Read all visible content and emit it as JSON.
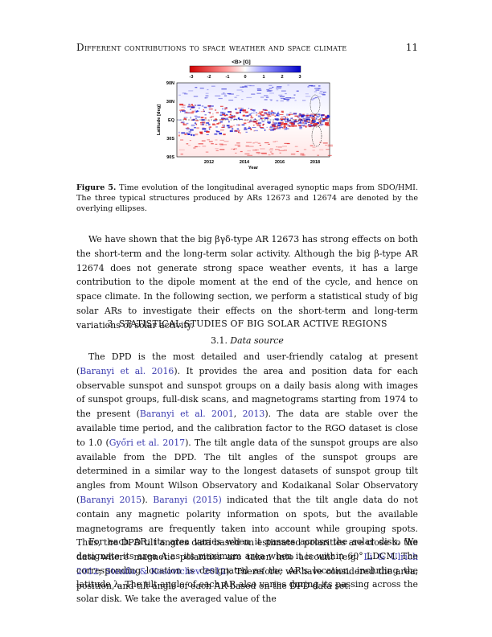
{
  "header": {
    "title": "Different contributions to space weather and space climate",
    "page_number": "11"
  },
  "figure": {
    "colorbar_title": "<B> [G]",
    "colorbar_ticks": [
      "-3",
      "-2",
      "-1",
      "0",
      "1",
      "2",
      "3"
    ],
    "ylabel": "Latitude [deg]",
    "yticks": [
      "90N",
      "30N",
      "EQ",
      "30S",
      "90S"
    ],
    "xticks": [
      "2012",
      "2014",
      "2016",
      "2018"
    ],
    "xlabel": "Year",
    "colors": {
      "negative": "#e02020",
      "positive": "#1a1ad0",
      "zero": "#ffffff"
    }
  },
  "caption": {
    "label": "Figure 5.",
    "text": " Time evolution of the longitudinal averaged synoptic maps from SDO/HMI. The three typical structures produced by ARs 12673 and 12674 are denoted by the overlying ellipses."
  },
  "paragraph1": "We have shown that the big βγδ-type AR 12673 has strong effects on both the short-term and the long-term solar activity. Although the big β-type AR 12674 does not generate strong space weather events, it has a large contribution to the dipole moment at the end of the cycle, and hence on space climate. In the following section, we perform a statistical study of big solar ARs to investigate their effects on the short-term and long-term variations of solar activity.",
  "section_heading": "3. STATISTICAL STUDIES OF BIG SOLAR ACTIVE REGIONS",
  "subsection_number": "3.1.",
  "subsection_title": "Data source",
  "paragraph2": {
    "t1": "The DPD is the most detailed and user-friendly catalog at present (",
    "c1": "Baranyi et al. 2016",
    "t2": "). It provides the area and position data for each observable sunspot and sunspot groups on a daily basis along with images of sunspot groups, full-disk scans, and magnetograms starting from 1974 to the present (",
    "c2": "Baranyi et al. 2001",
    "t3": ", ",
    "c3": "2013",
    "t4": "). The data are stable over the available time period, and the calibration factor to the RGO dataset is close to 1.0 (",
    "c4": "Győri et al. 2017",
    "t5": "). The tilt angle data of the sunspot groups are also available from the DPD. The tilt angles of the sunspot groups are determined in a similar way to the longest datasets of sunspot group tilt angles from Mount Wilson Observatory and Kodaikanal Solar Observatory (",
    "c5": "Baranyi 2015",
    "t6": "). ",
    "c6": "Baranyi (2015)",
    "t7": " indicated that the tilt angle data do not contain any magnetic polarity information on spots, but the available magnetograms are frequently taken into account while grouping spots. Thus, the DPD tilt angles data based on estimated polarities are close to the data where magnetic polarities are taken into account (e.g. ",
    "c7": "Li & Ulrich 2012",
    "t8": "; ",
    "c8": "Stenflo & Kosovichev 2012",
    "t9": "). Therefore, we have considered the area, position, and tilt angle of each AR based on the DPD data set."
  },
  "paragraph3": "For each AR, its area varies when it passes across the solar disk. We designate its area A as its maximum area when it is within 60° LDCM. The corresponding location is designated as the AR's location, including the latitude λ. The tilt angle of each AR also varies during its passing across the solar disk. We take the averaged value of the"
}
